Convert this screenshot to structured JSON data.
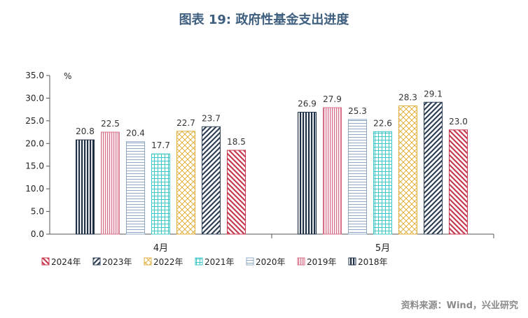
{
  "title": "图表 19: 政府性基金支出进度",
  "source": "资料来源：Wind，兴业研究",
  "chart_data": {
    "type": "bar",
    "ylabel": "%",
    "ylim": [
      0,
      35
    ],
    "yticks": [
      "0.0",
      "5.0",
      "10.0",
      "15.0",
      "20.0",
      "25.0",
      "30.0",
      "35.0"
    ],
    "categories": [
      "4月",
      "5月"
    ],
    "series": [
      {
        "name": "2018年",
        "values": [
          20.8,
          26.9
        ],
        "labels": [
          "20.8",
          "26.9"
        ],
        "color": "#1f2f45",
        "pattern": "vlines"
      },
      {
        "name": "2019年",
        "values": [
          22.5,
          27.9
        ],
        "labels": [
          "22.5",
          "27.9"
        ],
        "color": "#d9708a",
        "pattern": "vlines-fine"
      },
      {
        "name": "2020年",
        "values": [
          20.4,
          25.3
        ],
        "labels": [
          "20.4",
          "25.3"
        ],
        "color": "#8fa8c8",
        "pattern": "hlines"
      },
      {
        "name": "2021年",
        "values": [
          17.7,
          22.6
        ],
        "labels": [
          "17.7",
          "22.6"
        ],
        "color": "#40c8c8",
        "pattern": "grid"
      },
      {
        "name": "2022年",
        "values": [
          22.7,
          28.3
        ],
        "labels": [
          "22.7",
          "28.3"
        ],
        "color": "#e0b040",
        "pattern": "cross"
      },
      {
        "name": "2023年",
        "values": [
          23.7,
          29.1
        ],
        "labels": [
          "23.7",
          "29.1"
        ],
        "color": "#2f3f55",
        "pattern": "diag-right"
      },
      {
        "name": "2024年",
        "values": [
          18.5,
          23.0
        ],
        "labels": [
          "18.5",
          "23.0"
        ],
        "color": "#c83a50",
        "pattern": "diag-left"
      }
    ],
    "legend_order": [
      "2024年",
      "2023年",
      "2022年",
      "2021年",
      "2020年",
      "2019年",
      "2018年"
    ],
    "legend_position": "bottom",
    "grid": false
  }
}
